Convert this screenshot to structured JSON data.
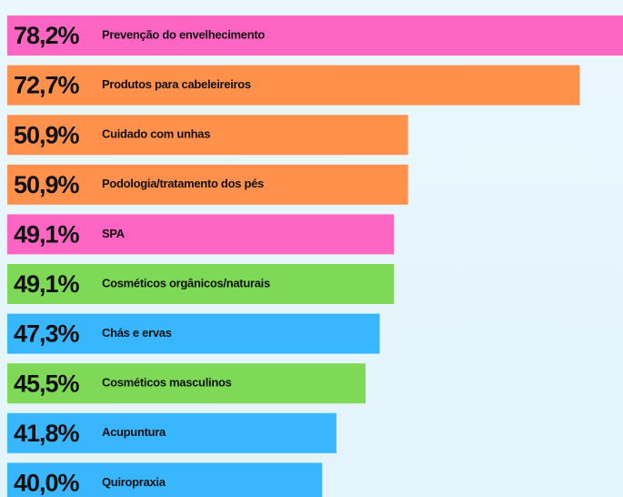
{
  "chart_data": {
    "type": "bar",
    "orientation": "horizontal",
    "categories": [
      "Prevenção do envelhecimento",
      "Produtos para cabeleireiros",
      "Cuidado com unhas",
      "Podologia/tratamento dos pés",
      "SPA",
      "Cosméticos orgânicos/naturais",
      "Chás e ervas",
      "Cosméticos masculinos",
      "Acupuntura",
      "Quiropraxia"
    ],
    "values": [
      78.2,
      72.7,
      50.9,
      50.9,
      49.1,
      49.1,
      47.3,
      45.5,
      41.8,
      40.0
    ],
    "value_labels": [
      "78,2%",
      "72,7%",
      "50,9%",
      "50,9%",
      "49,1%",
      "49,1%",
      "47,3%",
      "45,5%",
      "41,8%",
      "40,0%"
    ],
    "colors": [
      "#ff66c4",
      "#ff914d",
      "#ff914d",
      "#ff914d",
      "#ff66c4",
      "#7ed957",
      "#38b6ff",
      "#7ed957",
      "#38b6ff",
      "#38b6ff"
    ]
  }
}
